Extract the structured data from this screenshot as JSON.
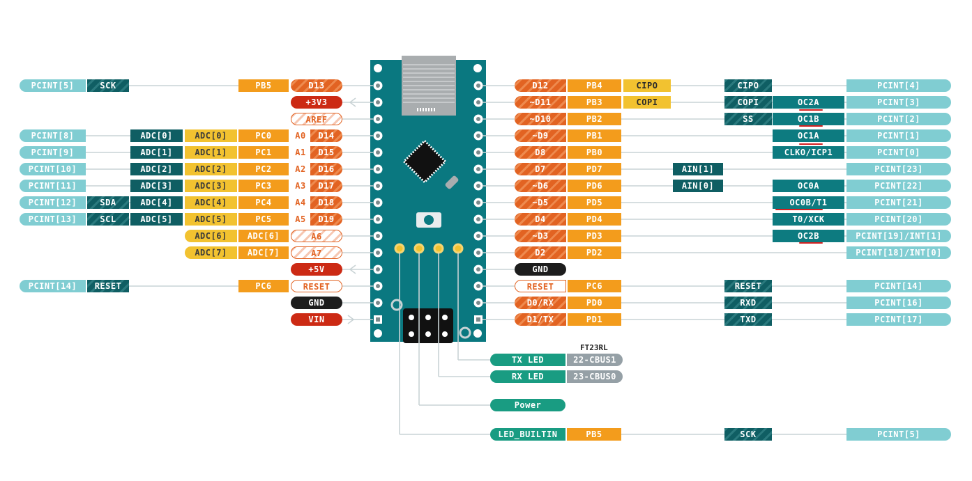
{
  "colors": {
    "board": "#0a7880",
    "line": "#c9d3d5"
  },
  "left_rows": [
    {
      "pcint": "PCINT[5]",
      "alt": "SCK",
      "adc": "",
      "adcy": "",
      "port": "PB5",
      "a": "",
      "pin": "D13",
      "pin_style": "dpin"
    },
    {
      "pin": "+3V3",
      "pin_style": "red"
    },
    {
      "pin": "AREF",
      "pin_style": "aref"
    },
    {
      "pcint": "PCINT[8]",
      "adc": "ADC[0]",
      "adcy": "ADC[0]",
      "port": "PC0",
      "a": "A0",
      "pin": "D14",
      "pin_style": "dpin"
    },
    {
      "pcint": "PCINT[9]",
      "adc": "ADC[1]",
      "adcy": "ADC[1]",
      "port": "PC1",
      "a": "A1",
      "pin": "D15",
      "pin_style": "dpin"
    },
    {
      "pcint": "PCINT[10]",
      "adc": "ADC[2]",
      "adcy": "ADC[2]",
      "port": "PC2",
      "a": "A2",
      "pin": "D16",
      "pin_style": "dpin"
    },
    {
      "pcint": "PCINT[11]",
      "adc": "ADC[3]",
      "adcy": "ADC[3]",
      "port": "PC3",
      "a": "A3",
      "pin": "D17",
      "pin_style": "dpin"
    },
    {
      "pcint": "PCINT[12]",
      "alt": "SDA",
      "adc": "ADC[4]",
      "adcy": "ADC[4]",
      "port": "PC4",
      "a": "A4",
      "pin": "D18",
      "pin_style": "dpin"
    },
    {
      "pcint": "PCINT[13]",
      "alt": "SCL",
      "adc": "ADC[5]",
      "adcy": "ADC[5]",
      "port": "PC5",
      "a": "A5",
      "pin": "D19",
      "pin_style": "dpin"
    },
    {
      "adcy": "ADC[6]",
      "port2": "ADC[6]",
      "pin": "A6",
      "pin_style": "aref"
    },
    {
      "adcy": "ADC[7]",
      "port2": "ADC[7]",
      "pin": "A7",
      "pin_style": "aref"
    },
    {
      "pin": "+5V",
      "pin_style": "red"
    },
    {
      "pcint": "PCINT[14]",
      "alt": "RESET",
      "port": "PC6",
      "pin": "RESET",
      "pin_style": "redout"
    },
    {
      "pin": "GND",
      "pin_style": "gnd"
    },
    {
      "pin": "VIN",
      "pin_style": "red"
    }
  ],
  "right_rows": [
    {
      "pin": "D12",
      "port": "PB4",
      "copi": "CIPO",
      "alt": "CIPO",
      "timer": "",
      "pcint": "PCINT[4]"
    },
    {
      "pin": "~D11",
      "port": "PB3",
      "copi": "COPI",
      "alt": "COPI",
      "timer": "OC2A",
      "pcint": "PCINT[3]"
    },
    {
      "pin": "~D10",
      "port": "PB2",
      "alt": "SS",
      "timer": "OC1B",
      "pcint": "PCINT[2]"
    },
    {
      "pin": "~D9",
      "port": "PB1",
      "timer": "OC1A",
      "pcint": "PCINT[1]"
    },
    {
      "pin": "D8",
      "port": "PB0",
      "timer": "CLKO/ICP1",
      "pcint": "PCINT[0]"
    },
    {
      "pin": "D7",
      "port": "PD7",
      "ain": "AIN[1]",
      "pcint": "PCINT[23]"
    },
    {
      "pin": "~D6",
      "port": "PD6",
      "ain": "AIN[0]",
      "timer": "OC0A",
      "pcint": "PCINT[22]"
    },
    {
      "pin": "~D5",
      "port": "PD5",
      "timer": "OC0B/T1",
      "pcint": "PCINT[21]"
    },
    {
      "pin": "D4",
      "port": "PD4",
      "timer": "T0/XCK",
      "pcint": "PCINT[20]"
    },
    {
      "pin": "~D3",
      "port": "PD3",
      "timer": "OC2B",
      "pcint": "PCINT[19]/INT[1]"
    },
    {
      "pin": "D2",
      "port": "PD2",
      "pcint": "PCINT[18]/INT[0]"
    },
    {
      "pin": "GND",
      "pin_style": "gnd"
    },
    {
      "pin": "RESET",
      "pin_style": "redout",
      "port": "PC6",
      "alt": "RESET",
      "pcint": "PCINT[14]"
    },
    {
      "pin": "D0/RX",
      "port": "PD0",
      "alt": "RXD",
      "pcint": "PCINT[16]"
    },
    {
      "pin": "D1/TX",
      "port": "PD1",
      "alt": "TXD",
      "pcint": "PCINT[17]"
    }
  ],
  "bottom": {
    "ft_title": "FT23RL",
    "tx_led": "TX LED",
    "tx_cbus": "22-CBUS1",
    "rx_led": "RX LED",
    "rx_cbus": "23-CBUS0",
    "power": "Power",
    "led_builtin": "LED_BUILTIN",
    "led_port": "PB5",
    "led_alt": "SCK",
    "led_pcint": "PCINT[5]"
  }
}
